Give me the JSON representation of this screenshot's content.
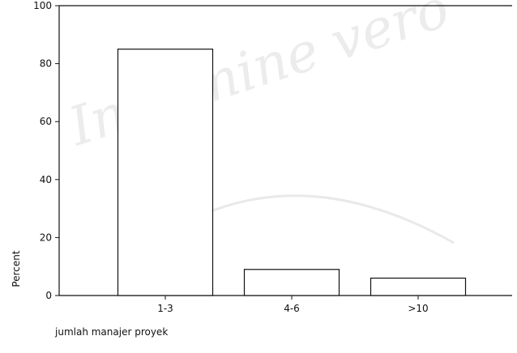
{
  "watermark": {
    "text": "In lumine vero"
  },
  "chart_data": {
    "type": "bar",
    "title": "",
    "xlabel": "jumlah manajer proyek",
    "ylabel": "Percent",
    "categories": [
      "1-3",
      "4-6",
      ">10"
    ],
    "values": [
      85.0,
      9.0,
      6.0
    ],
    "ylim": [
      0,
      100
    ],
    "yticks": [
      0,
      20,
      40,
      60,
      80,
      100
    ],
    "grid": false,
    "legend": "none",
    "bar_color": "#ffffff",
    "edge_color": "#111111"
  }
}
